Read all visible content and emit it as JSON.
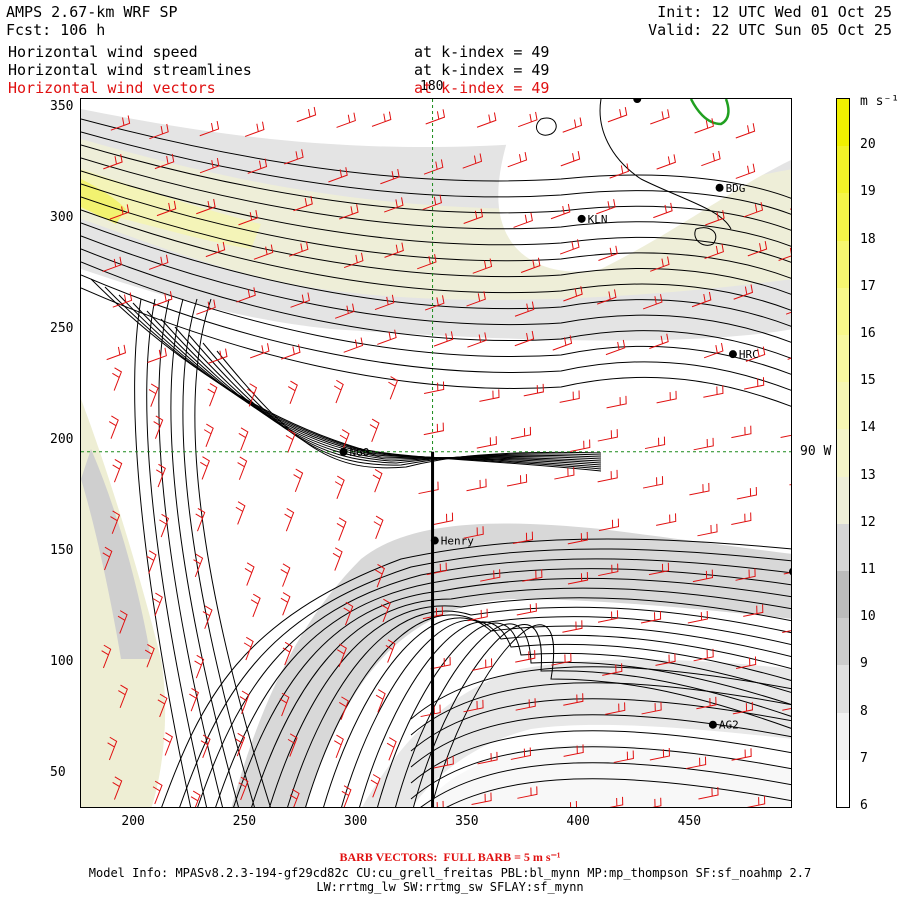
{
  "header": {
    "model": "AMPS 2.67-km WRF SP",
    "forecast": "Fcst: 106 h",
    "init": "Init: 12 UTC Wed 01 Oct 25",
    "valid": "Valid: 22 UTC Sun 05 Oct 25",
    "fields": [
      {
        "name": "Horizontal wind speed",
        "level": "at k-index = 49",
        "color": "#000000"
      },
      {
        "name": "Horizontal wind streamlines",
        "level": "at k-index = 49",
        "color": "#000000"
      },
      {
        "name": "Horizontal wind vectors",
        "level": "at k-index = 49",
        "color": "#e01010"
      }
    ]
  },
  "map": {
    "meridian_label": "180",
    "parallel_label": "90 W",
    "stations": [
      "KLN",
      "BDG",
      "HRC",
      "NGO",
      "Henry",
      "AG2"
    ]
  },
  "colorbar": {
    "unit_label": "m s⁻¹",
    "levels": [
      6,
      7,
      8,
      9,
      10,
      11,
      12,
      13,
      14,
      15,
      16,
      17,
      18,
      19,
      20
    ],
    "colors": [
      "#ffffff",
      "#f2f2f2",
      "#e0e0e0",
      "#cccccc",
      "#bcbcbc",
      "#d6d6d6",
      "#eeeed8",
      "#f4f4c8",
      "#f6f6b4",
      "#f8f8a0",
      "#f8f88a",
      "#f6f670",
      "#f4f448",
      "#f2f228",
      "#f0f000"
    ]
  },
  "chart_data": {
    "type": "contour-streamline-map",
    "title": "AMPS 2.67-km WRF SP",
    "x_ticks": [
      200,
      250,
      300,
      350,
      400,
      450
    ],
    "y_ticks": [
      50,
      100,
      150,
      200,
      250,
      300,
      350
    ],
    "xlim": [
      176,
      496
    ],
    "ylim": [
      34,
      354
    ],
    "reference_lines": {
      "vertical_x": 334,
      "horizontal_y": 195
    },
    "section_line": {
      "x": 334,
      "y_from": 34,
      "y_to": 195
    },
    "stations": [
      {
        "name": "KLN",
        "x": 401,
        "y": 300
      },
      {
        "name": "BDG",
        "x": 463,
        "y": 314
      },
      {
        "name": "HRC",
        "x": 469,
        "y": 239
      },
      {
        "name": "NGO",
        "x": 294,
        "y": 195
      },
      {
        "name": "Henry",
        "x": 335,
        "y": 155
      },
      {
        "name": "AG2",
        "x": 460,
        "y": 72
      },
      {
        "name": "",
        "x": 426,
        "y": 354
      },
      {
        "name": "",
        "x": 496,
        "y": 141
      }
    ]
  },
  "footer": {
    "barb_note": "BARB VECTORS:  FULL BARB = 5 m s⁻¹",
    "model_info": "Model Info: MPASv8.2.3-194-gf29cd82c CU:cu_grell_freitas PBL:bl_mynn MP:mp_thompson SF:sf_noahmp 2.7",
    "model_info_2": "LW:rrtmg_lw SW:rrtmg_sw SFLAY:sf_mynn"
  }
}
